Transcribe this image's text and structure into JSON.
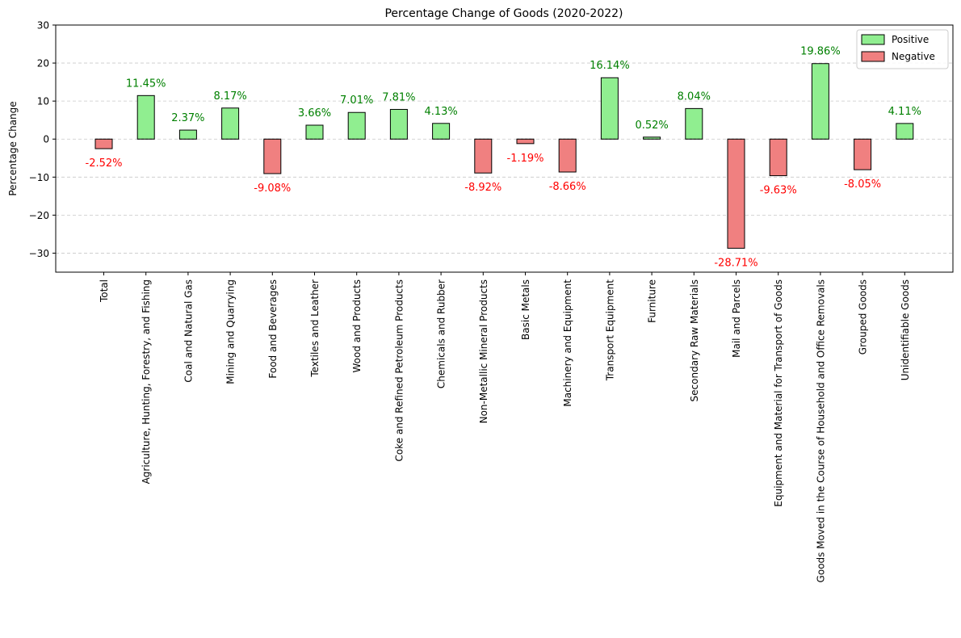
{
  "chart_data": {
    "type": "bar",
    "title": "Percentage Change of Goods (2020-2022)",
    "xlabel": "",
    "ylabel": "Percentage Change",
    "ylim": [
      -35,
      30
    ],
    "yticks": [
      -30,
      -20,
      -10,
      0,
      10,
      20,
      30
    ],
    "grid": "y-dashed",
    "legend_position": "top-right",
    "legend": [
      {
        "label": "Positive",
        "color": "#90ee90"
      },
      {
        "label": "Negative",
        "color": "#f08080"
      }
    ],
    "positive_label_color": "#008000",
    "negative_label_color": "#ff0000",
    "bar_edge_color": "#000000",
    "categories": [
      "Total",
      "Agriculture, Hunting, Forestry, and Fishing",
      "Coal and Natural Gas",
      "Mining and Quarrying",
      "Food and Beverages",
      "Textiles and Leather",
      "Wood and Products",
      "Coke and Refined Petroleum Products",
      "Chemicals and Rubber",
      "Non-Metallic Mineral Products",
      "Basic Metals",
      "Machinery and Equipment",
      "Transport Equipment",
      "Furniture",
      "Secondary Raw Materials",
      "Mail and Parcels",
      "Equipment and Material for Transport of Goods",
      "Goods Moved in the Course of Household and Office Removals",
      "Grouped Goods",
      "Unidentifiable Goods"
    ],
    "values": [
      -2.52,
      11.45,
      2.37,
      8.17,
      -9.08,
      3.66,
      7.01,
      7.81,
      4.13,
      -8.92,
      -1.19,
      -8.66,
      16.14,
      0.52,
      8.04,
      -28.71,
      -9.63,
      19.86,
      -8.05,
      4.11
    ],
    "data_labels": [
      "-2.52%",
      "11.45%",
      "2.37%",
      "8.17%",
      "-9.08%",
      "3.66%",
      "7.01%",
      "7.81%",
      "4.13%",
      "-8.92%",
      "-1.19%",
      "-8.66%",
      "16.14%",
      "0.52%",
      "8.04%",
      "-28.71%",
      "-9.63%",
      "19.86%",
      "-8.05%",
      "4.11%"
    ]
  }
}
